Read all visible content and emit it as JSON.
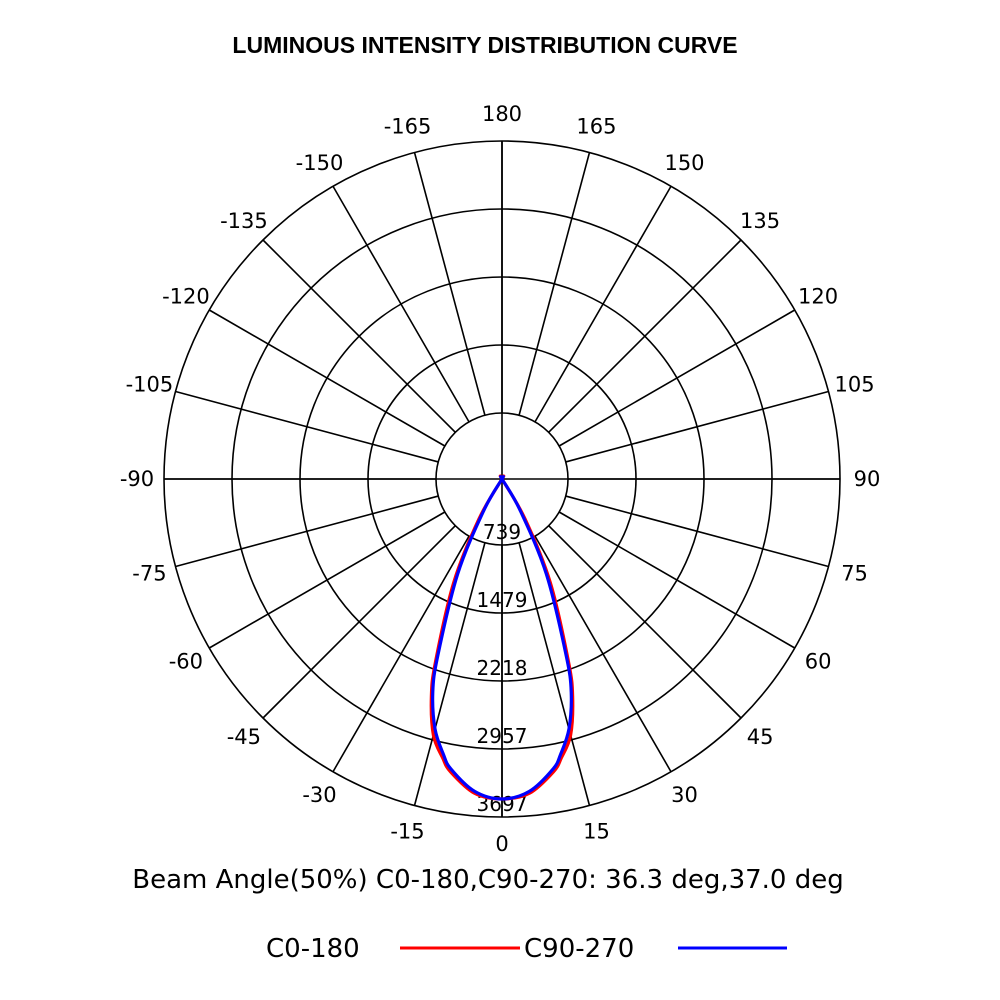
{
  "title": "LUMINOUS INTENSITY DISTRIBUTION CURVE",
  "beam_angle_text": "Beam Angle(50%) C0-180,C90-270:  36.3 deg,37.0 deg",
  "chart_data": {
    "type": "polar-line",
    "title": "LUMINOUS INTENSITY DISTRIBUTION CURVE",
    "angle_ticks": [
      "0",
      "15",
      "30",
      "45",
      "60",
      "75",
      "90",
      "105",
      "120",
      "135",
      "150",
      "165",
      "180",
      "-165",
      "-150",
      "-135",
      "-120",
      "-105",
      "-90",
      "-75",
      "-60",
      "-45",
      "-30",
      "-15"
    ],
    "radial_ticks": [
      "739",
      "1479",
      "2218",
      "2957",
      "3697"
    ],
    "radial_range": [
      0,
      3697
    ],
    "grid": true,
    "legend_position": "bottom",
    "series": [
      {
        "name": "C0-180",
        "color": "#ff0000",
        "angles": [
          -90,
          -60,
          -45,
          -30,
          -25,
          -20,
          -18,
          -15,
          -12,
          -10,
          -5,
          0,
          5,
          10,
          12,
          15,
          18,
          20,
          25,
          30,
          45,
          60,
          90
        ],
        "values": [
          0,
          0,
          0,
          500,
          1250,
          2125,
          2500,
          2900,
          3120,
          3250,
          3450,
          3500,
          3450,
          3250,
          3120,
          2900,
          2500,
          2125,
          1250,
          500,
          0,
          0,
          0
        ]
      },
      {
        "name": "C90-270",
        "color": "#0000ff",
        "angles": [
          -90,
          -60,
          -45,
          -30,
          -25,
          -20,
          -18,
          -15,
          -12,
          -10,
          -5,
          0,
          5,
          10,
          12,
          15,
          18,
          20,
          25,
          30,
          45,
          60,
          90
        ],
        "values": [
          0,
          0,
          0,
          400,
          1150,
          2050,
          2450,
          2830,
          3080,
          3220,
          3430,
          3500,
          3430,
          3220,
          3080,
          2830,
          2450,
          2050,
          1150,
          400,
          0,
          0,
          0
        ]
      }
    ],
    "beam_angle_c0_180": 36.3,
    "beam_angle_c90_270": 37.0
  }
}
